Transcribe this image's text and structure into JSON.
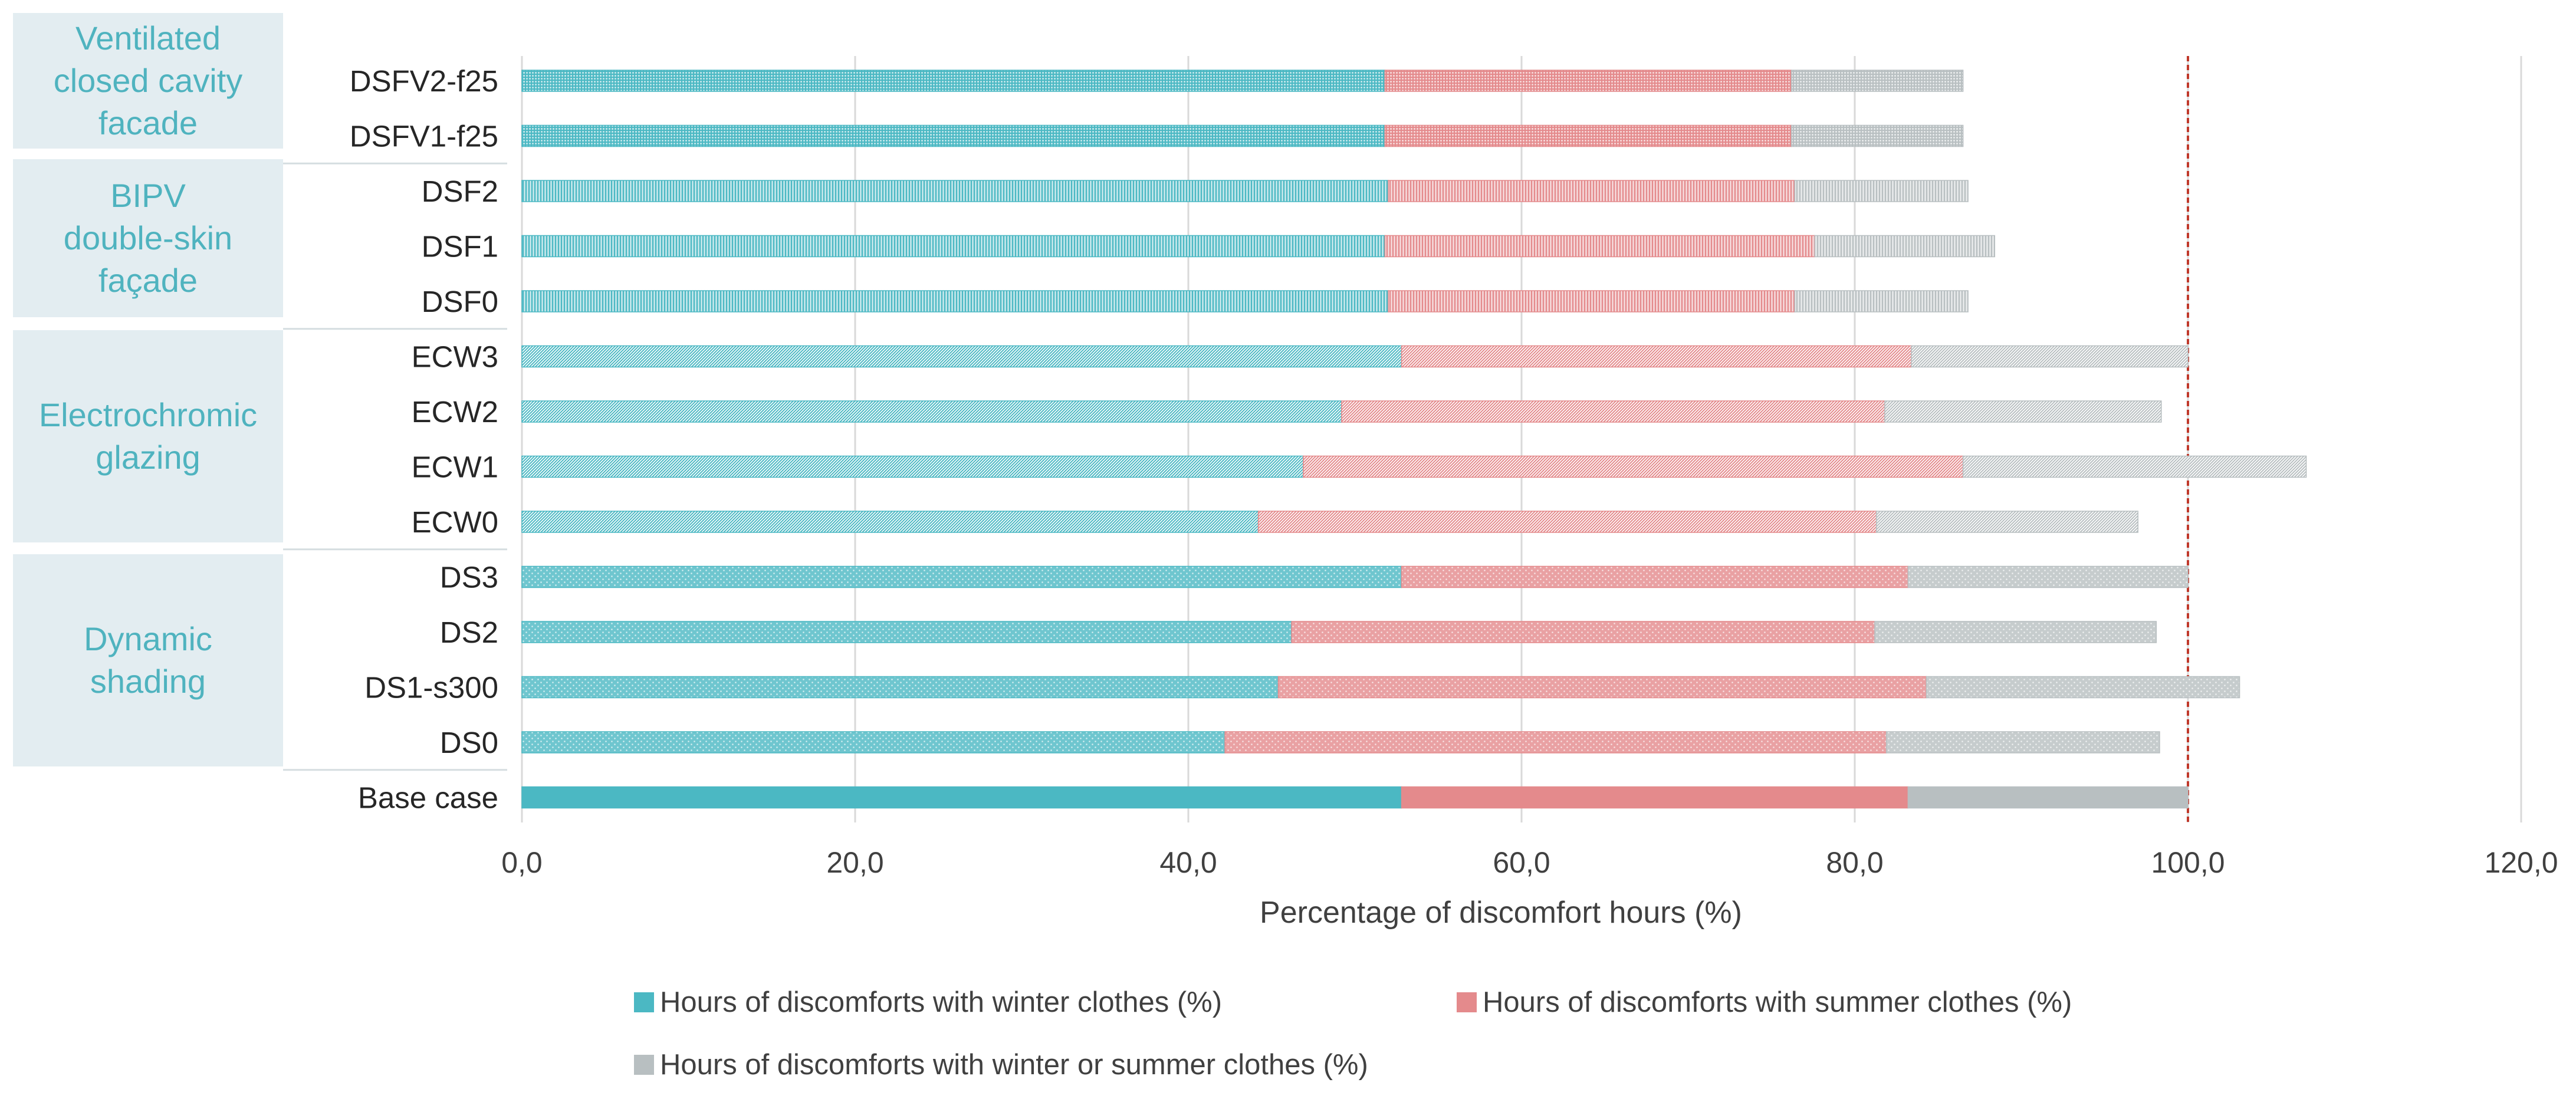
{
  "groups": [
    {
      "key": "ventilated",
      "label": "Ventilated\nclosed cavity\nfacade"
    },
    {
      "key": "bipv",
      "label": "BIPV\ndouble-skin\nfaçade"
    },
    {
      "key": "electrochromic",
      "label": "Electrochromic\nglazing"
    },
    {
      "key": "dynamic",
      "label": "Dynamic\nshading"
    }
  ],
  "legend": {
    "winter": "Hours of discomforts with winter clothes (%)",
    "summer": "Hours of discomforts with summer clothes (%)",
    "either": "Hours of discomforts with winter or summer clothes (%)"
  },
  "colors": {
    "winter": "#4bb8c3",
    "summer": "#e48a8c",
    "either": "#b8bfc1",
    "reference": "#c0392b",
    "group_bg": "#e3edf1",
    "group_text": "#4fb3bf"
  },
  "chart_data": {
    "type": "bar",
    "orientation": "horizontal",
    "stacked": true,
    "title": "",
    "xlabel": "Percentage of discomfort hours (%)",
    "ylabel": "",
    "xlim": [
      0,
      120
    ],
    "xticks": [
      0,
      20,
      40,
      60,
      80,
      100,
      120
    ],
    "xtick_labels": [
      "0,0",
      "20,0",
      "40,0",
      "60,0",
      "80,0",
      "100,0",
      "120,0"
    ],
    "reference_line": 100,
    "grid": true,
    "legend_position": "bottom",
    "categories": [
      "DSFV2-f25",
      "DSFV1-f25",
      "DSF2",
      "DSF1",
      "DSF0",
      "ECW3",
      "ECW2",
      "ECW1",
      "ECW0",
      "DS3",
      "DS2",
      "DS1-s300",
      "DS0",
      "Base case"
    ],
    "series": [
      {
        "name": "Hours of discomforts with winter clothes (%)",
        "key": "winter",
        "values": [
          51.8,
          51.8,
          52.0,
          51.8,
          52.0,
          52.8,
          49.2,
          46.9,
          44.2,
          52.8,
          46.2,
          45.4,
          42.2,
          52.8
        ]
      },
      {
        "name": "Hours of discomforts with summer clothes (%)",
        "key": "summer",
        "values": [
          24.4,
          24.4,
          24.4,
          25.8,
          24.4,
          30.6,
          32.6,
          39.6,
          37.1,
          30.4,
          35.0,
          38.9,
          39.7,
          30.4
        ]
      },
      {
        "name": "Hours of discomforts with winter or summer clothes (%)",
        "key": "either",
        "values": [
          10.3,
          10.3,
          10.4,
          10.8,
          10.4,
          16.6,
          16.6,
          20.6,
          15.7,
          16.8,
          16.9,
          18.8,
          16.4,
          16.8
        ]
      }
    ],
    "patterns": [
      "grid",
      "grid",
      "vlines",
      "vlines",
      "vlines",
      "diagonal",
      "diagonal",
      "diagonal",
      "diagonal",
      "dots",
      "dots",
      "dots",
      "dots",
      "solid"
    ]
  }
}
